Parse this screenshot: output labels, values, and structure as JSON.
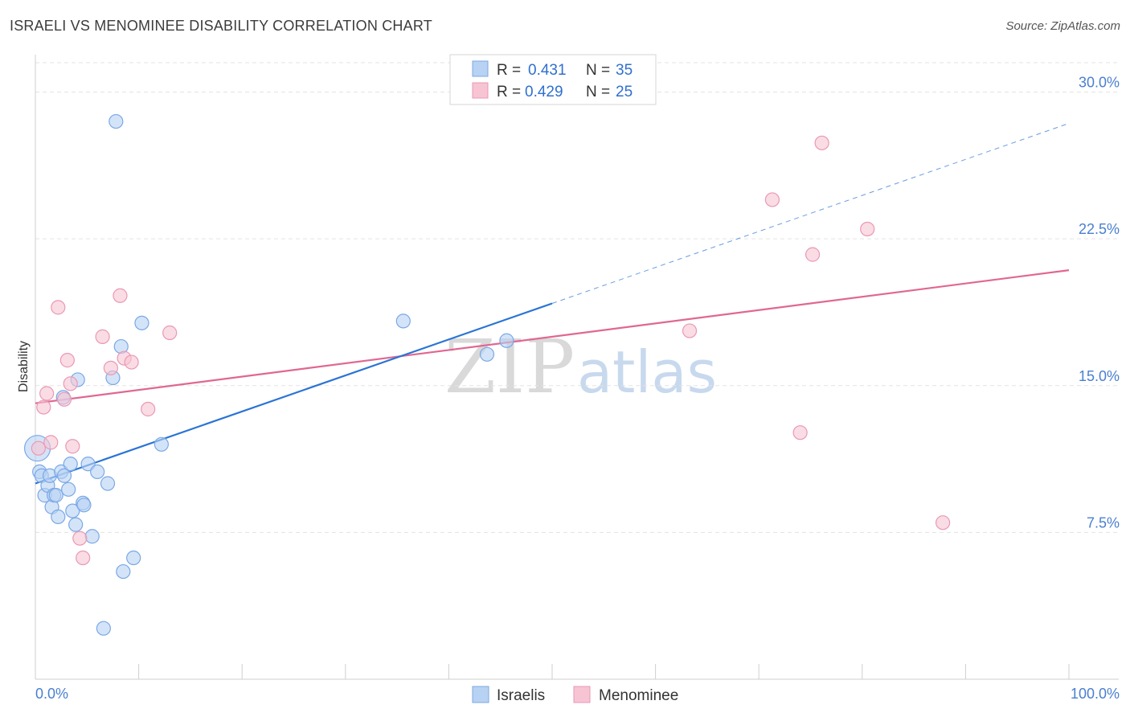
{
  "title": "ISRAELI VS MENOMINEE DISABILITY CORRELATION CHART",
  "source": "Source: ZipAtlas.com",
  "watermark": {
    "part1": "ZIP",
    "part2": "atlas"
  },
  "colors": {
    "blue_fill": "#b8d2f3",
    "blue_stroke": "#7aa8e6",
    "blue_line": "#2a74d4",
    "pink_fill": "#f7c4d4",
    "pink_stroke": "#ea98b3",
    "pink_line": "#e06791",
    "tick_text": "#4a7fd0",
    "grid": "#e3e3e3"
  },
  "legend": {
    "rows": [
      {
        "r_label": "R =",
        "r_value": "0.431",
        "n_label": "N =",
        "n_value": "35",
        "series": "blue"
      },
      {
        "r_label": "R =",
        "r_value": "0.429",
        "n_label": "N =",
        "n_value": "25",
        "series": "pink"
      }
    ]
  },
  "chart_data": {
    "type": "scatter",
    "title": "ISRAELI VS MENOMINEE DISABILITY CORRELATION CHART",
    "xlabel": "",
    "ylabel": "Disability",
    "xlim": [
      0,
      100
    ],
    "ylim": [
      0,
      31.5
    ],
    "x_tick_labels": [
      "0.0%",
      "100.0%"
    ],
    "y_ticks": [
      7.5,
      15.0,
      22.5,
      30.0
    ],
    "y_tick_labels": [
      "7.5%",
      "15.0%",
      "22.5%",
      "30.0%"
    ],
    "grid": "horizontal dashed",
    "legend_position": "top-center",
    "series": [
      {
        "name": "Israelis",
        "color": "#b8d2f3",
        "points": [
          [
            0.2,
            11.8
          ],
          [
            0.4,
            10.6
          ],
          [
            0.6,
            10.4
          ],
          [
            0.9,
            9.4
          ],
          [
            1.2,
            9.9
          ],
          [
            1.4,
            10.4
          ],
          [
            1.6,
            8.8
          ],
          [
            1.8,
            9.4
          ],
          [
            2.0,
            9.4
          ],
          [
            2.2,
            8.3
          ],
          [
            2.5,
            10.6
          ],
          [
            2.7,
            14.4
          ],
          [
            2.8,
            10.4
          ],
          [
            3.2,
            9.7
          ],
          [
            3.4,
            11.0
          ],
          [
            3.6,
            8.6
          ],
          [
            3.9,
            7.9
          ],
          [
            4.1,
            15.3
          ],
          [
            4.6,
            9.0
          ],
          [
            4.7,
            8.9
          ],
          [
            5.1,
            11.0
          ],
          [
            5.5,
            7.3
          ],
          [
            6.0,
            10.6
          ],
          [
            6.6,
            2.6
          ],
          [
            7.0,
            10.0
          ],
          [
            7.5,
            15.4
          ],
          [
            7.8,
            28.5
          ],
          [
            8.3,
            17.0
          ],
          [
            8.5,
            5.5
          ],
          [
            9.5,
            6.2
          ],
          [
            10.3,
            18.2
          ],
          [
            12.2,
            12.0
          ],
          [
            35.6,
            18.3
          ],
          [
            43.7,
            16.6
          ],
          [
            45.6,
            17.3
          ]
        ],
        "trend": {
          "x": [
            0,
            50
          ],
          "y": [
            10.0,
            19.2
          ]
        },
        "trend_extension": {
          "x": [
            50,
            100
          ],
          "y": [
            19.2,
            28.4
          ]
        }
      },
      {
        "name": "Menominee",
        "color": "#f7c4d4",
        "points": [
          [
            0.3,
            11.8
          ],
          [
            0.8,
            13.9
          ],
          [
            1.1,
            14.6
          ],
          [
            1.5,
            12.1
          ],
          [
            2.2,
            19.0
          ],
          [
            2.8,
            14.3
          ],
          [
            3.1,
            16.3
          ],
          [
            3.4,
            15.1
          ],
          [
            3.6,
            11.9
          ],
          [
            4.3,
            7.2
          ],
          [
            4.6,
            6.2
          ],
          [
            6.5,
            17.5
          ],
          [
            7.3,
            15.9
          ],
          [
            8.2,
            19.6
          ],
          [
            8.6,
            16.4
          ],
          [
            9.3,
            16.2
          ],
          [
            10.9,
            13.8
          ],
          [
            13.0,
            17.7
          ],
          [
            63.3,
            17.8
          ],
          [
            71.3,
            24.5
          ],
          [
            74.0,
            12.6
          ],
          [
            75.2,
            21.7
          ],
          [
            76.1,
            27.4
          ],
          [
            80.5,
            23.0
          ],
          [
            87.8,
            8.0
          ]
        ],
        "trend": {
          "x": [
            0,
            100
          ],
          "y": [
            14.1,
            20.9
          ]
        }
      }
    ]
  },
  "bottom_legend": {
    "items": [
      {
        "label": "Israelis",
        "series": "blue"
      },
      {
        "label": "Menominee",
        "series": "pink"
      }
    ]
  }
}
